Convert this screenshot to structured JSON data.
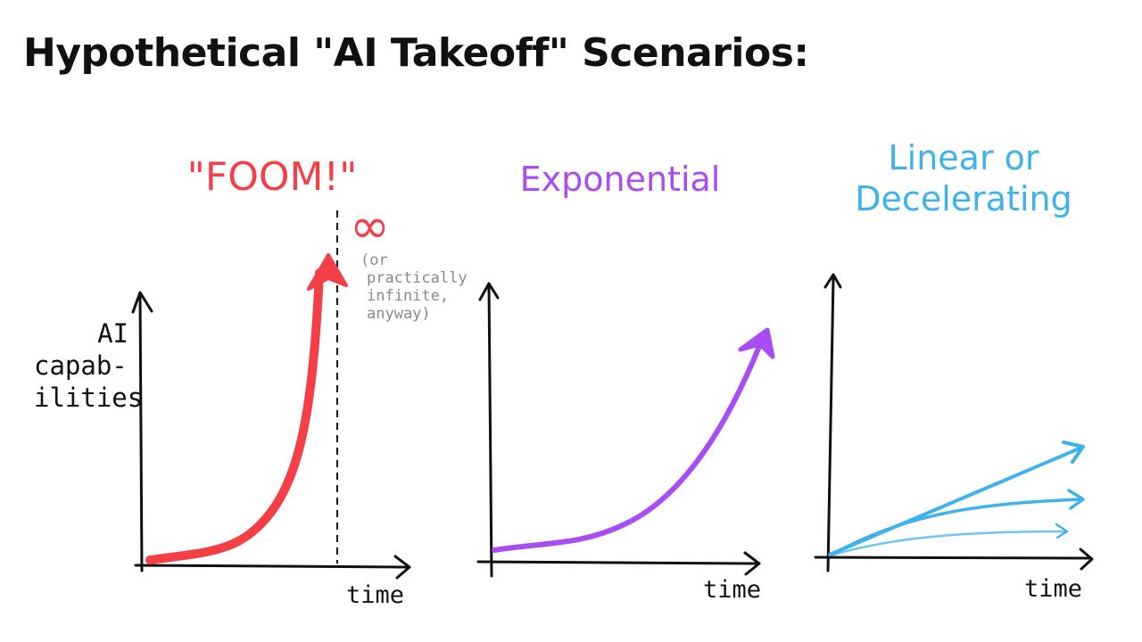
{
  "title": "Hypothetical \"AI Takeoff\" Scenarios:",
  "y_axis_label": [
    "AI",
    "capab-",
    "ilities"
  ],
  "panels": [
    {
      "heading": "\"FOOM!\"",
      "color": "#f43f46",
      "x_label": "time",
      "annotation_symbol": "∞",
      "annotation_lines": [
        "(or",
        "practically",
        "infinite,",
        "anyway)"
      ]
    },
    {
      "heading": "Exponential",
      "color": "#a84cf3",
      "x_label": "time"
    },
    {
      "heading_lines": [
        "Linear or",
        "Decelerating"
      ],
      "color": "#3fb2ec",
      "x_label": "time"
    }
  ]
}
